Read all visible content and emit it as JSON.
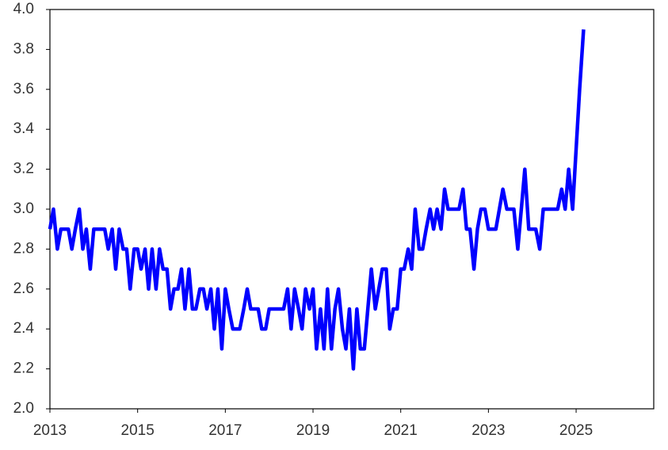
{
  "chart_data": {
    "type": "line",
    "xlim": [
      2013,
      2026.77
    ],
    "xticks": [
      2013,
      2015,
      2017,
      2019,
      2021,
      2023,
      2025
    ],
    "ylim": [
      2.0,
      4.0
    ],
    "yticks": [
      {
        "value": 2.0,
        "label": "2.0"
      },
      2.2,
      2.4,
      2.6,
      2.8,
      {
        "value": 3.0,
        "label": "3.0"
      },
      3.2,
      3.4,
      3.6,
      3.8,
      {
        "value": 4.0,
        "label": "4.0"
      }
    ],
    "x": [
      2013.0,
      2013.08,
      2013.17,
      2013.25,
      2013.33,
      2013.42,
      2013.5,
      2013.58,
      2013.67,
      2013.75,
      2013.83,
      2013.92,
      2014.0,
      2014.08,
      2014.17,
      2014.25,
      2014.33,
      2014.42,
      2014.5,
      2014.58,
      2014.67,
      2014.75,
      2014.83,
      2014.92,
      2015.0,
      2015.08,
      2015.17,
      2015.25,
      2015.33,
      2015.42,
      2015.5,
      2015.58,
      2015.67,
      2015.75,
      2015.83,
      2015.92,
      2016.0,
      2016.08,
      2016.17,
      2016.25,
      2016.33,
      2016.42,
      2016.5,
      2016.58,
      2016.67,
      2016.75,
      2016.83,
      2016.92,
      2017.0,
      2017.08,
      2017.17,
      2017.25,
      2017.33,
      2017.42,
      2017.5,
      2017.58,
      2017.67,
      2017.75,
      2017.83,
      2017.92,
      2018.0,
      2018.08,
      2018.17,
      2018.25,
      2018.33,
      2018.42,
      2018.5,
      2018.58,
      2018.67,
      2018.75,
      2018.83,
      2018.92,
      2019.0,
      2019.08,
      2019.17,
      2019.25,
      2019.33,
      2019.42,
      2019.5,
      2019.58,
      2019.67,
      2019.75,
      2019.83,
      2019.92,
      2020.0,
      2020.08,
      2020.17,
      2020.25,
      2020.33,
      2020.42,
      2020.5,
      2020.58,
      2020.67,
      2020.75,
      2020.83,
      2020.92,
      2021.0,
      2021.08,
      2021.17,
      2021.25,
      2021.33,
      2021.42,
      2021.5,
      2021.58,
      2021.67,
      2021.75,
      2021.83,
      2021.92,
      2022.0,
      2022.08,
      2022.17,
      2022.25,
      2022.33,
      2022.42,
      2022.5,
      2022.58,
      2022.67,
      2022.75,
      2022.83,
      2022.92,
      2023.0,
      2023.08,
      2023.17,
      2023.25,
      2023.33,
      2023.42,
      2023.5,
      2023.58,
      2023.67,
      2023.75,
      2023.83,
      2023.92,
      2024.0,
      2024.08,
      2024.17,
      2024.25,
      2024.33,
      2024.42,
      2024.5,
      2024.58,
      2024.67,
      2024.75,
      2024.83,
      2024.92,
      2025.0,
      2025.08,
      2025.17
    ],
    "series": [
      {
        "color": "#0000ff",
        "values": [
          2.9,
          3.0,
          2.8,
          2.9,
          2.9,
          2.9,
          2.8,
          2.9,
          3.0,
          2.8,
          2.9,
          2.7,
          2.9,
          2.9,
          2.9,
          2.9,
          2.8,
          2.9,
          2.7,
          2.9,
          2.8,
          2.8,
          2.6,
          2.8,
          2.8,
          2.7,
          2.8,
          2.6,
          2.8,
          2.6,
          2.8,
          2.7,
          2.7,
          2.5,
          2.6,
          2.6,
          2.7,
          2.5,
          2.7,
          2.5,
          2.5,
          2.6,
          2.6,
          2.5,
          2.6,
          2.4,
          2.6,
          2.3,
          2.6,
          2.5,
          2.4,
          2.4,
          2.4,
          2.5,
          2.6,
          2.5,
          2.5,
          2.5,
          2.4,
          2.4,
          2.5,
          2.5,
          2.5,
          2.5,
          2.5,
          2.6,
          2.4,
          2.6,
          2.5,
          2.4,
          2.6,
          2.5,
          2.6,
          2.3,
          2.5,
          2.3,
          2.6,
          2.3,
          2.5,
          2.6,
          2.4,
          2.3,
          2.5,
          2.2,
          2.5,
          2.3,
          2.3,
          2.5,
          2.7,
          2.5,
          2.6,
          2.7,
          2.7,
          2.4,
          2.5,
          2.5,
          2.7,
          2.7,
          2.8,
          2.7,
          3.0,
          2.8,
          2.8,
          2.9,
          3.0,
          2.9,
          3.0,
          2.9,
          3.1,
          3.0,
          3.0,
          3.0,
          3.0,
          3.1,
          2.9,
          2.9,
          2.7,
          2.9,
          3.0,
          3.0,
          2.9,
          2.9,
          2.9,
          3.0,
          3.1,
          3.0,
          3.0,
          3.0,
          2.8,
          3.0,
          3.2,
          2.9,
          2.9,
          2.9,
          2.8,
          3.0,
          3.0,
          3.0,
          3.0,
          3.0,
          3.1,
          3.0,
          3.2,
          3.0,
          3.3,
          3.6,
          3.9
        ]
      }
    ]
  }
}
